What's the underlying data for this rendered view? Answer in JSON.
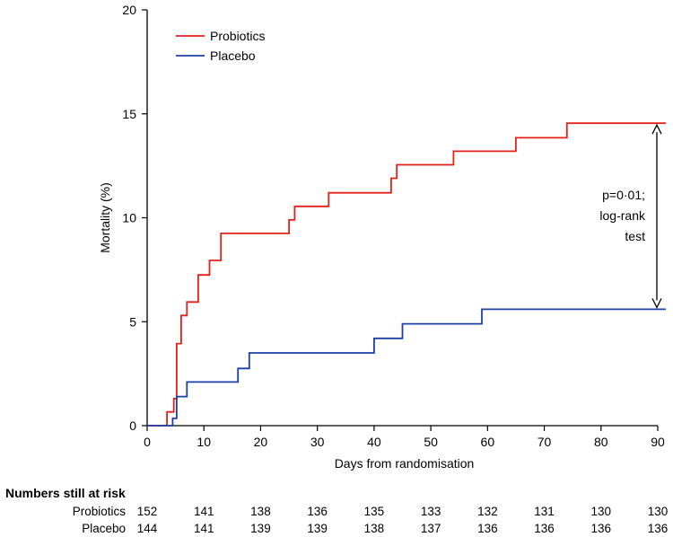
{
  "chart_data": {
    "type": "line",
    "subtype": "kaplan-meier step",
    "xlabel": "Days from randomisation",
    "ylabel": "Mortality (%)",
    "xlim": [
      0,
      90
    ],
    "ylim": [
      0,
      20
    ],
    "x_ticks": [
      0,
      10,
      20,
      30,
      40,
      50,
      60,
      70,
      80,
      90
    ],
    "y_ticks": [
      0,
      5,
      10,
      15,
      20
    ],
    "grid": false,
    "legend_position": "top-left",
    "series": [
      {
        "name": "Probiotics",
        "color": "#e32119",
        "points": [
          [
            0,
            0
          ],
          [
            3.5,
            0
          ],
          [
            3.5,
            0.66
          ],
          [
            4.7,
            0.66
          ],
          [
            4.7,
            1.3
          ],
          [
            5.2,
            1.3
          ],
          [
            5.2,
            3.95
          ],
          [
            6.0,
            3.95
          ],
          [
            6.0,
            5.3
          ],
          [
            7.0,
            5.3
          ],
          [
            7.0,
            5.95
          ],
          [
            9.0,
            5.95
          ],
          [
            9.0,
            7.25
          ],
          [
            11.0,
            7.25
          ],
          [
            11.0,
            7.95
          ],
          [
            13.0,
            7.95
          ],
          [
            13.0,
            9.25
          ],
          [
            25.0,
            9.25
          ],
          [
            25.0,
            9.9
          ],
          [
            26.0,
            9.9
          ],
          [
            26.0,
            10.55
          ],
          [
            32.0,
            10.55
          ],
          [
            32.0,
            11.2
          ],
          [
            43.0,
            11.2
          ],
          [
            43.0,
            11.9
          ],
          [
            44.0,
            11.9
          ],
          [
            44.0,
            12.55
          ],
          [
            54.0,
            12.55
          ],
          [
            54.0,
            13.2
          ],
          [
            65.0,
            13.2
          ],
          [
            65.0,
            13.85
          ],
          [
            74.0,
            13.85
          ],
          [
            74.0,
            14.55
          ],
          [
            91.5,
            14.55
          ]
        ]
      },
      {
        "name": "Placebo",
        "color": "#1f3fa8",
        "points": [
          [
            0,
            0
          ],
          [
            4.5,
            0
          ],
          [
            4.5,
            0.35
          ],
          [
            5.2,
            0.35
          ],
          [
            5.2,
            1.4
          ],
          [
            7.0,
            1.4
          ],
          [
            7.0,
            2.1
          ],
          [
            16.0,
            2.1
          ],
          [
            16.0,
            2.75
          ],
          [
            18.0,
            2.75
          ],
          [
            18.0,
            3.5
          ],
          [
            40.0,
            3.5
          ],
          [
            40.0,
            4.2
          ],
          [
            45.0,
            4.2
          ],
          [
            45.0,
            4.9
          ],
          [
            59.0,
            4.9
          ],
          [
            59.0,
            5.6
          ],
          [
            91.5,
            5.6
          ]
        ]
      }
    ],
    "annotation": {
      "lines": [
        "p=0·01;",
        "log-rank",
        "test"
      ],
      "x": 90,
      "y_from": 14.55,
      "y_to": 5.6
    }
  },
  "risk_table": {
    "title": "Numbers still at risk",
    "days": [
      0,
      10,
      20,
      30,
      40,
      50,
      60,
      70,
      80,
      90
    ],
    "rows": [
      {
        "label": "Probiotics",
        "values": [
          "152",
          "141",
          "138",
          "136",
          "135",
          "133",
          "132",
          "131",
          "130",
          "130"
        ]
      },
      {
        "label": "Placebo",
        "values": [
          "144",
          "141",
          "139",
          "139",
          "138",
          "137",
          "136",
          "136",
          "136",
          "136"
        ]
      }
    ]
  }
}
